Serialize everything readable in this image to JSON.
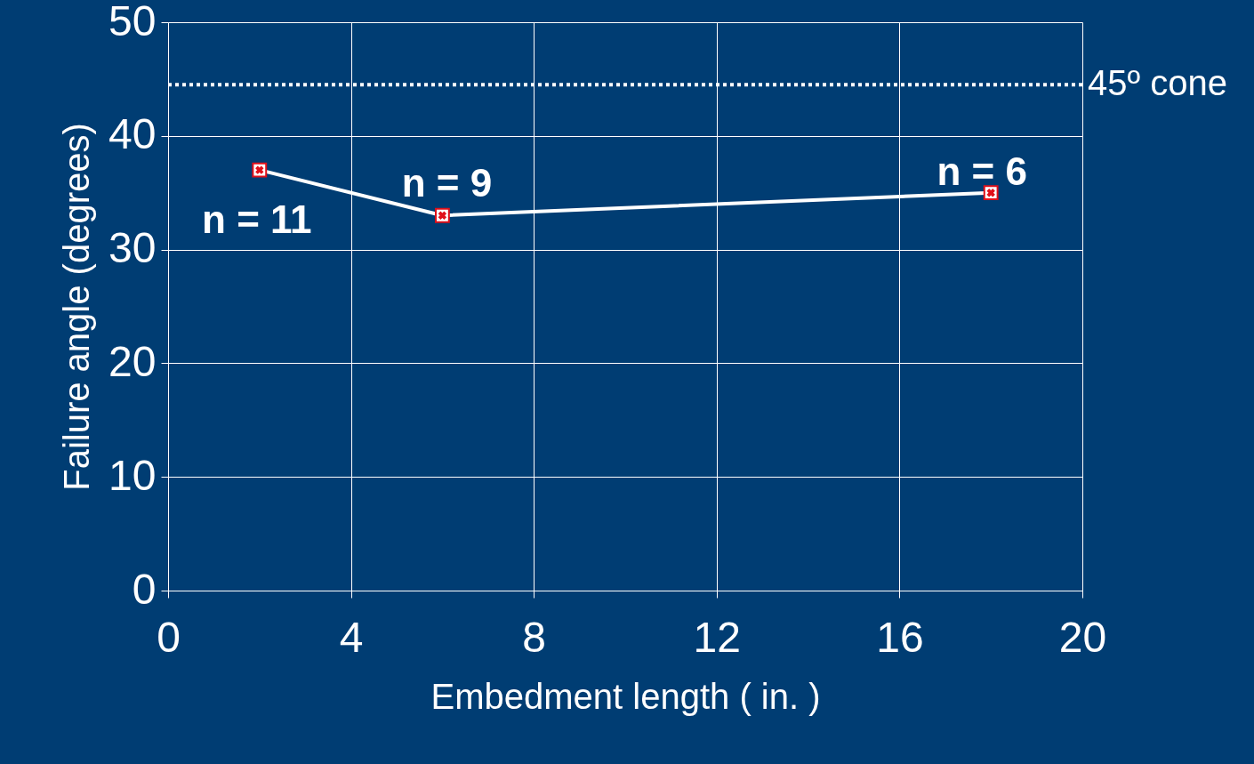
{
  "chart_data": {
    "type": "line",
    "xlabel": "Embedment length ( in. )",
    "ylabel": "Failure angle (degrees)",
    "x": [
      2,
      6,
      18
    ],
    "series": [
      {
        "color": "#ffffff",
        "values": [
          37,
          33,
          35
        ]
      }
    ],
    "xlim": [
      0,
      20
    ],
    "xticks": [
      0,
      4,
      8,
      12,
      16,
      20
    ],
    "ylim": [
      0,
      50
    ],
    "yticks": [
      0,
      10,
      20,
      30,
      40,
      50
    ],
    "grid": true,
    "marker": "square",
    "line_style": "solid",
    "ref_lines": [
      {
        "axis": "y",
        "value": 44.5,
        "label": "45º cone",
        "color": "#ffffff",
        "line_style": "dotted"
      }
    ],
    "annotations": [
      {
        "text": "n = 11",
        "x": 2,
        "y": 37
      },
      {
        "text": "n = 9",
        "x": 6,
        "y": 33
      },
      {
        "text": "n = 6",
        "x": 18,
        "y": 35
      }
    ]
  }
}
